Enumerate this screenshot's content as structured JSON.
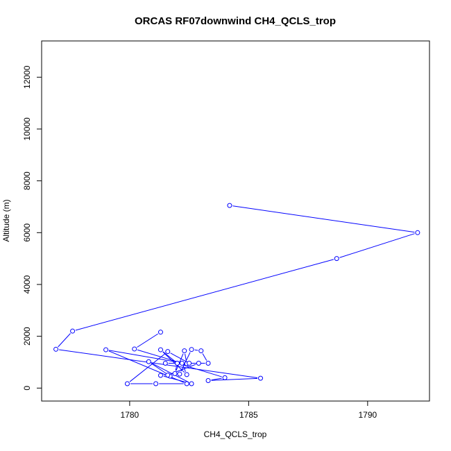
{
  "chart_data": {
    "type": "line",
    "title": "ORCAS RF07downwind CH4_QCLS_trop",
    "xlabel": "CH4_QCLS_trop",
    "ylabel": "Altitude (m)",
    "xlim": [
      1776.3,
      1792.6
    ],
    "ylim": [
      -500,
      13400
    ],
    "xticks": [
      1780,
      1785,
      1790
    ],
    "yticks": [
      0,
      2000,
      4000,
      6000,
      8000,
      10000,
      12000
    ],
    "series": [
      {
        "name": "CH4_QCLS_trop",
        "color": "#0000ff",
        "points": [
          [
            1784.2,
            7050
          ],
          [
            1792.1,
            6000
          ],
          [
            1788.7,
            5000
          ],
          [
            1777.6,
            2200
          ],
          [
            1776.9,
            1500
          ],
          [
            1785.5,
            380
          ],
          [
            1783.3,
            290
          ],
          [
            1784.0,
            400
          ],
          [
            1782.0,
            960
          ],
          [
            1781.9,
            560
          ],
          [
            1782.3,
            1440
          ],
          [
            1782.4,
            940
          ],
          [
            1779.0,
            1480
          ],
          [
            1782.4,
            170
          ],
          [
            1781.1,
            170
          ],
          [
            1779.9,
            170
          ],
          [
            1781.6,
            1410
          ],
          [
            1782.5,
            960
          ],
          [
            1781.5,
            960
          ],
          [
            1783.3,
            960
          ],
          [
            1783.0,
            1440
          ],
          [
            1782.6,
            1490
          ],
          [
            1782.1,
            540
          ],
          [
            1781.7,
            460
          ],
          [
            1780.8,
            1020
          ],
          [
            1782.6,
            170
          ],
          [
            1781.3,
            490
          ],
          [
            1781.6,
            500
          ],
          [
            1782.9,
            960
          ],
          [
            1782.0,
            960
          ],
          [
            1781.3,
            1480
          ],
          [
            1782.4,
            520
          ],
          [
            1782.2,
            960
          ],
          [
            1780.2,
            1510
          ],
          [
            1781.3,
            2160
          ]
        ]
      }
    ]
  }
}
